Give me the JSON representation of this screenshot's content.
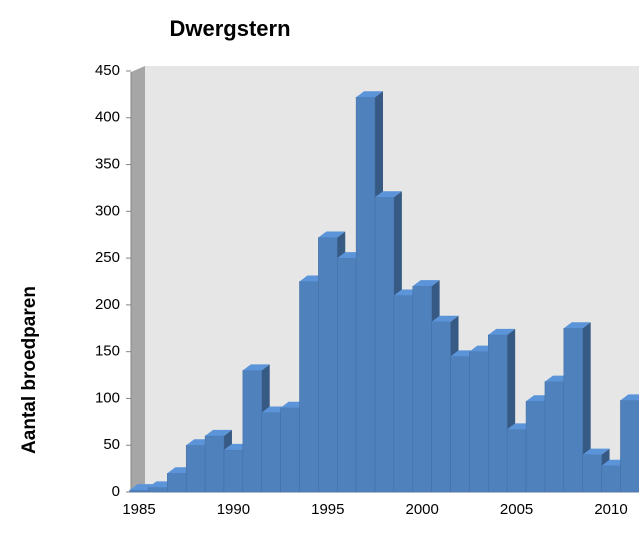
{
  "chart_data": {
    "type": "bar3d",
    "title": "Dwergstern",
    "y_label": "Aantal broedparen",
    "categories": [
      "1985",
      null,
      null,
      null,
      null,
      "1990",
      null,
      null,
      null,
      null,
      "1995",
      null,
      null,
      null,
      null,
      "2000",
      null,
      null,
      null,
      null,
      "2005",
      null,
      null,
      null,
      null,
      "2010",
      null
    ],
    "values": [
      2,
      5,
      20,
      50,
      60,
      45,
      130,
      85,
      90,
      225,
      272,
      250,
      422,
      315,
      210,
      220,
      182,
      145,
      150,
      168,
      67,
      97,
      118,
      175,
      40,
      28,
      98
    ],
    "color": "#4f81bd",
    "ylim": [
      0,
      450
    ],
    "yticks": [
      0,
      50,
      100,
      150,
      200,
      250,
      300,
      350,
      400,
      450
    ]
  }
}
